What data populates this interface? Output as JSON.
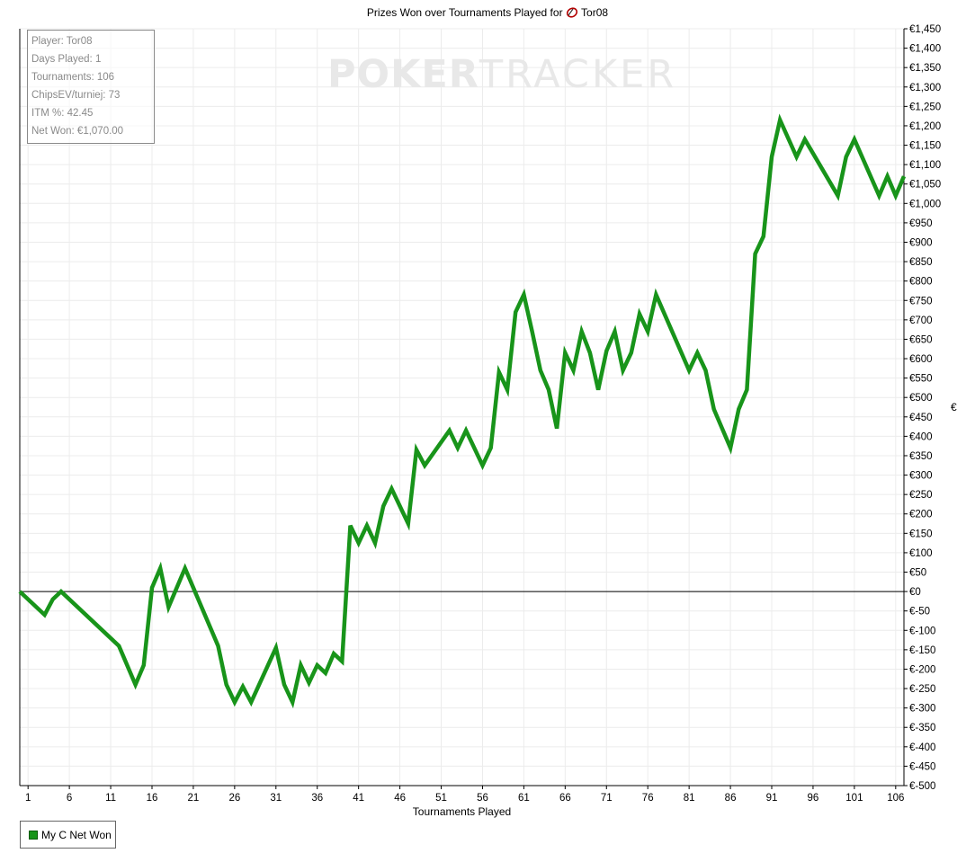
{
  "title_prefix": "Prizes Won over Tournaments Played for",
  "title_player": "Tor08",
  "colors": {
    "line": "#18941a",
    "grid": "#ececec",
    "axis": "#000000",
    "watermark": "#e8e8e8"
  },
  "watermark": {
    "part1": "POKER",
    "part2": "TRACKER"
  },
  "stats": {
    "player": "Player: Tor08",
    "days": "Days Played: 1",
    "tournaments": "Tournaments: 106",
    "chipsev": "ChipsEV/turniej: 73",
    "itm": "ITM %: 42.45",
    "netwon": "Net Won: €1,070.00"
  },
  "legend": {
    "label": "My C Net Won",
    "icon": "square-swatch"
  },
  "chart_data": {
    "type": "line",
    "title": "Prizes Won over Tournaments Played for Tor08",
    "xlabel": "Tournaments Played",
    "ylabel": "€",
    "xlim": [
      0,
      107
    ],
    "ylim": [
      -500,
      1450
    ],
    "x_ticks": [
      1,
      6,
      11,
      16,
      21,
      26,
      31,
      36,
      41,
      46,
      51,
      56,
      61,
      66,
      71,
      76,
      81,
      86,
      91,
      96,
      101,
      106
    ],
    "y_tick_step": 50,
    "y_tick_prefix": "€",
    "grid": true,
    "legend_position": "bottom-left",
    "series": [
      {
        "name": "My C Net Won",
        "x": [
          0,
          3,
          4,
          5,
          12,
          14,
          15,
          16,
          17,
          18,
          20,
          24,
          25,
          26,
          27,
          28,
          31,
          32,
          33,
          34,
          35,
          36,
          37,
          38,
          39,
          40,
          41,
          42,
          43,
          44,
          45,
          47,
          48,
          49,
          52,
          53,
          54,
          56,
          57,
          58,
          59,
          60,
          61,
          62,
          63,
          64,
          65,
          66,
          67,
          68,
          69,
          70,
          71,
          72,
          73,
          74,
          75,
          76,
          77,
          81,
          82,
          83,
          84,
          86,
          87,
          88,
          89,
          90,
          91,
          92,
          94,
          95,
          99,
          100,
          101,
          104,
          105,
          106,
          107
        ],
        "y": [
          0,
          -60,
          -20,
          0,
          -140,
          -240,
          -190,
          10,
          60,
          -40,
          60,
          -140,
          -240,
          -285,
          -245,
          -285,
          -145,
          -240,
          -285,
          -190,
          -235,
          -190,
          -210,
          -160,
          -180,
          170,
          125,
          170,
          125,
          220,
          265,
          175,
          365,
          325,
          415,
          370,
          415,
          325,
          370,
          565,
          520,
          720,
          765,
          670,
          570,
          520,
          420,
          615,
          570,
          670,
          615,
          520,
          620,
          670,
          570,
          615,
          715,
          670,
          765,
          570,
          615,
          570,
          470,
          370,
          470,
          520,
          870,
          915,
          1120,
          1215,
          1120,
          1165,
          1020,
          1120,
          1165,
          1020,
          1070,
          1020,
          1070
        ]
      }
    ]
  }
}
